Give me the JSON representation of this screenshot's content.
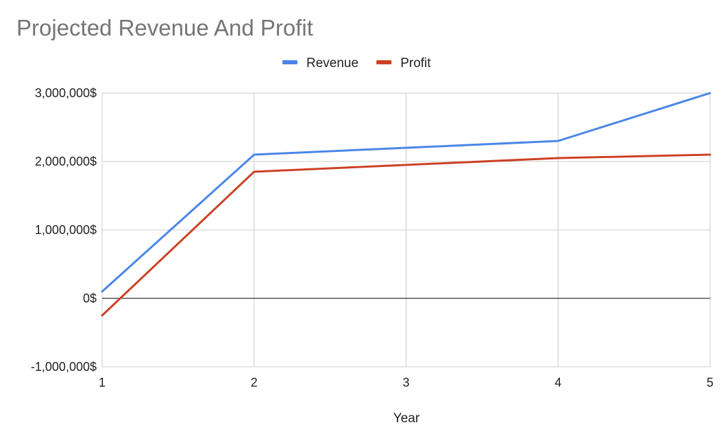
{
  "chart_data": {
    "type": "line",
    "title": "Projected Revenue And Profit",
    "xlabel": "Year",
    "ylabel": "",
    "x": [
      1,
      2,
      3,
      4,
      5
    ],
    "x_tick_labels": [
      "1",
      "2",
      "3",
      "4",
      "5"
    ],
    "ylim": [
      -1000000,
      3000000
    ],
    "y_ticks": [
      -1000000,
      0,
      1000000,
      2000000,
      3000000
    ],
    "y_tick_labels": [
      "-1,000,000$",
      "0$",
      "1,000,000$",
      "2,000,000$",
      "3,000,000$"
    ],
    "grid": true,
    "legend_position": "top",
    "series": [
      {
        "name": "Revenue",
        "color": "#4a86e8",
        "values": [
          100000,
          2100000,
          2200000,
          2300000,
          3000000
        ]
      },
      {
        "name": "Profit",
        "color": "#cc4125",
        "values": [
          -250000,
          1850000,
          1950000,
          2050000,
          2100000
        ]
      }
    ]
  }
}
